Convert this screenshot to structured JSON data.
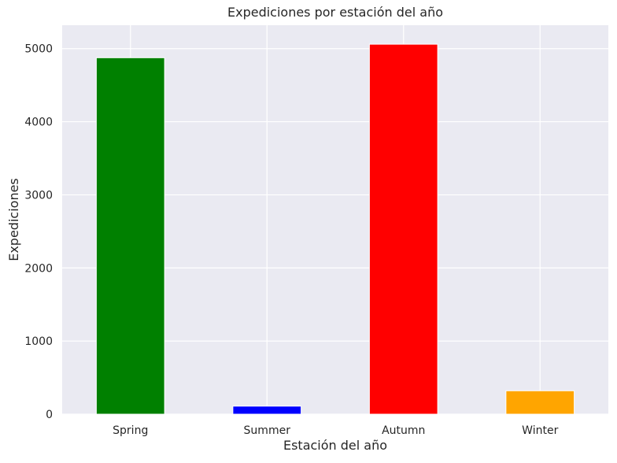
{
  "chart_data": {
    "type": "bar",
    "title": "Expediciones por estación del año",
    "xlabel": "Estación del año",
    "ylabel": "Expediciones",
    "categories": [
      "Spring",
      "Summer",
      "Autumn",
      "Winter"
    ],
    "values": [
      4875,
      110,
      5060,
      320
    ],
    "colors": [
      "#008000",
      "#0000ff",
      "#ff0000",
      "#ffa500"
    ],
    "ylim": [
      0,
      5320
    ],
    "yticks": [
      0,
      1000,
      2000,
      3000,
      4000,
      5000
    ],
    "grid": true,
    "style": "seaborn-darkgrid",
    "background_color": "#eaeaf2",
    "grid_color": "#ffffff"
  }
}
